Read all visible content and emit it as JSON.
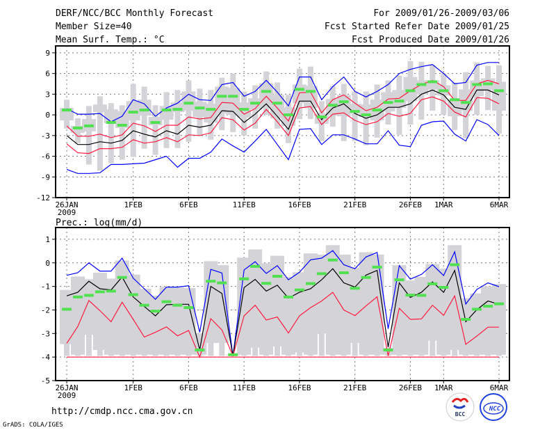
{
  "header": {
    "title": "DERF/NCC/BCC Monthly Forecast",
    "member_size": "Member Size=40",
    "variable": "Mean Surf. Temp.: °C",
    "period": "For 2009/01/26-2009/03/06",
    "started": "Fcst Started Refer Date 2009/01/25",
    "produced": "Fcst Produced Date 2009/01/26"
  },
  "footer": {
    "url": "http://cmdp.ncc.cma.gov.cn",
    "grads": "GrADS: COLA/IGES",
    "logo_bcc": "BCC",
    "logo_ncc": "NCC"
  },
  "colors": {
    "max_min": "#0000ff",
    "percentile": "#ff1a40",
    "mean": "#000000",
    "obs": "#50e050",
    "box": "#d4d4d8"
  },
  "chart_data": [
    {
      "type": "box+line",
      "title": "Mean Surf. Temp.: °C",
      "ylim": [
        -12,
        10
      ],
      "yticks": [
        9,
        6,
        3,
        0,
        -3,
        -6,
        -9,
        -12
      ],
      "xtick_labels": [
        {
          "day": 0,
          "label": "26JAN",
          "sub": "2009"
        },
        {
          "day": 6,
          "label": "1FEB"
        },
        {
          "day": 11,
          "label": "6FEB"
        },
        {
          "day": 16,
          "label": "11FEB"
        },
        {
          "day": 21,
          "label": "16FEB"
        },
        {
          "day": 26,
          "label": "21FEB"
        },
        {
          "day": 31,
          "label": "26FEB"
        },
        {
          "day": 34,
          "label": "1MAR"
        },
        {
          "day": 39,
          "label": "6MAR"
        }
      ],
      "grid": true,
      "box_min": [
        -2.0,
        -4.1,
        -7.2,
        -8.1,
        -7.0,
        -6.5,
        -6.1,
        -4.9,
        -5.8,
        -4.8,
        -4.8,
        -3.9,
        -2.9,
        -3.6,
        -2.2,
        -2.5,
        -3.0,
        -2.0,
        0.0,
        -2.0,
        -4.1,
        -0.6,
        -0.6,
        -3.8,
        -1.7,
        -3.8,
        -3.8,
        -4.4,
        -3.3,
        -1.4,
        -2.9,
        -1.4,
        -0.7,
        0.6,
        0.0,
        -2.2,
        -3.4,
        0.0,
        0.7,
        -2.7
      ],
      "box_max": [
        2.2,
        -0.5,
        1.3,
        2.7,
        1.7,
        1.4,
        4.5,
        4.1,
        1.4,
        3.3,
        3.6,
        5.0,
        3.8,
        3.6,
        5.4,
        6.0,
        3.4,
        4.3,
        6.3,
        4.7,
        2.9,
        6.7,
        7.0,
        2.0,
        4.2,
        4.5,
        3.4,
        3.4,
        4.4,
        5.0,
        5.7,
        7.8,
        7.7,
        7.2,
        6.0,
        4.7,
        6.2,
        7.6,
        7.1,
        7.2
      ],
      "box_q1": [
        -0.8,
        -2.6,
        -2.4,
        0.4,
        -1.2,
        -1.9,
        -0.8,
        -0.1,
        -1.5,
        -0.7,
        0.4,
        0.6,
        -0.3,
        -1.1,
        0.2,
        0.0,
        -0.4,
        0.8,
        1.0,
        -0.5,
        -1.6,
        1.7,
        1.0,
        -1.3,
        0.0,
        -0.2,
        0.2,
        -0.3,
        -0.8,
        0.5,
        1.0,
        2.0,
        3.0,
        3.7,
        2.8,
        -0.2,
        0.6,
        2.7,
        3.6,
        0.6
      ],
      "box_q3": [
        1.0,
        -1.6,
        -0.6,
        1.5,
        0.8,
        0.5,
        2.0,
        2.2,
        -0.3,
        1.3,
        1.8,
        3.4,
        1.9,
        1.6,
        4.1,
        3.9,
        1.8,
        2.4,
        4.6,
        2.9,
        1.1,
        4.4,
        4.2,
        0.2,
        2.3,
        2.9,
        1.6,
        1.5,
        2.2,
        3.3,
        3.6,
        5.5,
        5.0,
        5.0,
        4.3,
        2.2,
        3.7,
        5.0,
        5.3,
        4.8
      ],
      "series": [
        {
          "name": "max",
          "color_key": "max_min",
          "values": [
            0.9,
            0.1,
            0.1,
            0.2,
            -1.0,
            -0.2,
            2.2,
            1.6,
            -0.2,
            1.0,
            1.7,
            3.0,
            2.2,
            2.1,
            4.4,
            4.7,
            2.7,
            3.4,
            5.0,
            3.3,
            1.3,
            5.5,
            5.5,
            2.2,
            4.1,
            5.5,
            3.4,
            2.6,
            3.4,
            4.4,
            6.0,
            6.6,
            7.0,
            7.3,
            6.0,
            4.5,
            4.7,
            7.2,
            7.6,
            7.6
          ]
        },
        {
          "name": "upper",
          "color_key": "percentile",
          "values": [
            -1.6,
            -3.1,
            -3.1,
            -2.8,
            -3.3,
            -2.9,
            -1.2,
            -1.6,
            -2.4,
            -1.5,
            -1.5,
            -0.3,
            -0.6,
            -0.4,
            1.8,
            1.7,
            0.1,
            0.9,
            2.7,
            1.0,
            -0.9,
            3.2,
            3.3,
            0.3,
            2.2,
            2.9,
            1.7,
            0.6,
            1.1,
            2.3,
            2.4,
            3.5,
            4.4,
            5.0,
            4.1,
            2.1,
            2.1,
            4.5,
            5.0,
            4.5
          ]
        },
        {
          "name": "mean",
          "color_key": "mean",
          "values": [
            -3.0,
            -4.3,
            -4.3,
            -3.9,
            -4.1,
            -3.7,
            -2.3,
            -2.8,
            -3.2,
            -2.3,
            -2.8,
            -1.5,
            -1.8,
            -1.5,
            0.6,
            0.5,
            -1.1,
            0.1,
            1.6,
            -0.2,
            -2.1,
            2.0,
            2.0,
            -0.7,
            1.0,
            1.6,
            0.2,
            -0.5,
            0.0,
            1.1,
            1.1,
            1.6,
            3.0,
            3.6,
            2.9,
            1.1,
            0.8,
            3.6,
            3.6,
            2.9
          ]
        },
        {
          "name": "lower",
          "color_key": "percentile",
          "values": [
            -4.2,
            -5.5,
            -5.6,
            -4.9,
            -4.9,
            -4.7,
            -3.6,
            -4.1,
            -3.9,
            -3.3,
            -3.9,
            -2.9,
            -3.0,
            -2.6,
            -0.4,
            -0.7,
            -2.2,
            -1.2,
            0.8,
            -1.0,
            -3.0,
            1.0,
            1.2,
            -1.4,
            0.1,
            0.3,
            -0.8,
            -1.4,
            -1.0,
            0.2,
            -0.2,
            0.2,
            2.2,
            2.6,
            2.0,
            0.4,
            -0.3,
            2.5,
            2.4,
            1.6
          ]
        },
        {
          "name": "min",
          "color_key": "max_min",
          "values": [
            -7.9,
            -8.5,
            -8.5,
            -8.4,
            -7.2,
            -7.2,
            -7.1,
            -7.0,
            -6.5,
            -6.0,
            -7.6,
            -6.3,
            -6.3,
            -5.4,
            -3.5,
            -4.5,
            -5.4,
            -3.8,
            -2.1,
            -4.3,
            -6.5,
            -2.1,
            -2.0,
            -4.3,
            -2.9,
            -2.9,
            -3.5,
            -4.2,
            -4.2,
            -2.3,
            -4.4,
            -4.6,
            -1.5,
            -1.0,
            -0.9,
            -2.8,
            -3.8,
            -0.7,
            -1.4,
            -3.0
          ]
        }
      ],
      "observed": [
        0.7,
        -1.9,
        -1.6,
        null,
        -1.1,
        -1.5,
        0.4,
        0.7,
        -1.1,
        0.7,
        0.8,
        1.7,
        1.0,
        0.8,
        2.7,
        2.7,
        0.8,
        1.7,
        3.4,
        1.7,
        0.0,
        3.7,
        3.4,
        -0.3,
        1.4,
        1.9,
        0.5,
        0.0,
        0.7,
        1.8,
        2.0,
        3.5,
        4.4,
        4.8,
        3.5,
        2.2,
        1.8,
        4.4,
        4.5,
        3.5
      ]
    },
    {
      "type": "box+line",
      "title": "Prec.: log(mm/d)",
      "ylim": [
        -5,
        1.5
      ],
      "yticks": [
        1,
        0,
        -1,
        -2,
        -3,
        -4,
        -5
      ],
      "xtick_labels": [
        {
          "day": 0,
          "label": "26JAN",
          "sub": "2009"
        },
        {
          "day": 6,
          "label": "1FEB"
        },
        {
          "day": 11,
          "label": "6FEB"
        },
        {
          "day": 16,
          "label": "11FEB"
        },
        {
          "day": 21,
          "label": "16FEB"
        },
        {
          "day": 26,
          "label": "21FEB"
        },
        {
          "day": 31,
          "label": "26FEB"
        },
        {
          "day": 34,
          "label": "1MAR"
        },
        {
          "day": 39,
          "label": "6MAR"
        }
      ],
      "grid": true,
      "box_min": [
        -3.95,
        -3.95,
        -3.95,
        -3.95,
        -3.95,
        -3.95,
        -3.95,
        -3.95,
        -3.95,
        -3.95,
        -3.95,
        -3.95,
        -3.95,
        -3.95,
        -3.95,
        -3.95,
        -3.95,
        -3.95,
        -3.95,
        -3.95,
        -3.95,
        -3.95,
        -3.95,
        -3.95,
        -3.95,
        -3.95,
        -3.95,
        -3.95,
        -3.95,
        -3.95,
        -3.95,
        -3.95,
        -3.95,
        -3.95,
        -3.95,
        -3.95,
        -3.95,
        -3.95,
        -3.95,
        -3.95
      ],
      "box_max": [
        -1.15,
        -0.58,
        -0.7,
        -0.42,
        -0.67,
        0.1,
        -0.5,
        -1.1,
        -1.4,
        -1.02,
        -1.05,
        -1.07,
        -3.0,
        0.07,
        -0.1,
        -3.9,
        0.22,
        0.57,
        -0.02,
        0.3,
        -0.6,
        -0.4,
        0.4,
        0.35,
        0.75,
        0.35,
        -0.2,
        0.45,
        0.35,
        -3.6,
        -0.1,
        -0.75,
        -0.6,
        -0.05,
        -0.25,
        0.75,
        -1.5,
        -1.3,
        -1.0,
        -0.9
      ],
      "box_q1": [
        -3.45,
        -3.9,
        -3.05,
        -3.7,
        -3.9,
        -3.9,
        -3.9,
        -3.9,
        -3.9,
        -3.9,
        -3.9,
        -3.9,
        -3.9,
        -3.4,
        -3.4,
        -3.9,
        -3.9,
        -3.6,
        -3.9,
        -3.55,
        -3.9,
        -3.8,
        -3.9,
        -3.0,
        -3.9,
        -3.9,
        -3.4,
        -3.9,
        -3.9,
        -3.9,
        -3.9,
        -3.9,
        -3.9,
        -3.3,
        -3.9,
        -3.7,
        -3.9,
        -3.9,
        -3.9,
        -3.9
      ],
      "box_q3": [
        -1.15,
        -0.58,
        -0.7,
        -0.42,
        -0.67,
        0.1,
        -0.5,
        -1.1,
        -1.4,
        -1.02,
        -1.05,
        -1.07,
        -3.0,
        0.07,
        -0.1,
        -3.9,
        0.22,
        0.57,
        -0.02,
        0.3,
        -0.6,
        -0.4,
        0.4,
        0.35,
        0.75,
        0.35,
        -0.2,
        0.45,
        0.35,
        -3.6,
        -0.1,
        -0.75,
        -0.6,
        -0.05,
        -0.25,
        0.75,
        -1.5,
        -1.3,
        -1.0,
        -0.9
      ],
      "series": [
        {
          "name": "max",
          "color_key": "max_min",
          "values": [
            -0.53,
            -0.42,
            0.0,
            -0.35,
            -0.35,
            0.2,
            -0.65,
            -1.1,
            -1.55,
            -1.03,
            -1.03,
            -0.97,
            -2.95,
            -0.28,
            -0.43,
            -3.95,
            -0.3,
            0.05,
            -0.45,
            -0.12,
            -0.72,
            -0.4,
            0.13,
            0.2,
            0.52,
            -0.08,
            -0.25,
            0.25,
            0.44,
            -2.8,
            -0.12,
            -0.69,
            -0.49,
            -0.08,
            -0.54,
            0.47,
            -1.75,
            -1.13,
            -0.85,
            -1.01
          ]
        },
        {
          "name": "mean",
          "color_key": "mean",
          "values": [
            -1.4,
            -1.25,
            -0.78,
            -1.1,
            -1.15,
            -0.6,
            -1.45,
            -1.85,
            -2.25,
            -1.78,
            -1.76,
            -1.76,
            -3.7,
            -1.0,
            -1.3,
            -3.95,
            -1.05,
            -0.7,
            -1.2,
            -0.95,
            -1.5,
            -1.25,
            -1.1,
            -0.72,
            -0.25,
            -0.85,
            -1.03,
            -0.52,
            -0.32,
            -3.58,
            -0.85,
            -1.47,
            -1.25,
            -0.81,
            -1.25,
            -0.32,
            -2.5,
            -1.99,
            -1.62,
            -1.76
          ]
        },
        {
          "name": "lower",
          "color_key": "percentile",
          "values": [
            -3.42,
            -2.7,
            -1.6,
            -2.03,
            -2.5,
            -1.67,
            -2.4,
            -3.15,
            -2.95,
            -2.72,
            -3.1,
            -2.87,
            -4.0,
            -2.37,
            -2.85,
            -3.95,
            -2.25,
            -1.8,
            -2.43,
            -2.3,
            -2.98,
            -2.25,
            -1.9,
            -1.62,
            -1.25,
            -2.0,
            -2.24,
            -1.83,
            -1.44,
            -3.95,
            -1.93,
            -2.4,
            -2.38,
            -1.8,
            -2.23,
            -1.4,
            -3.46,
            -3.11,
            -2.73,
            -2.73
          ]
        },
        {
          "name": "min",
          "color_key": "percentile",
          "values": [
            -4,
            -4,
            -4,
            -4,
            -4,
            -4,
            -4,
            -4,
            -4,
            -4,
            -4,
            -4,
            -4,
            -4,
            -4,
            -4,
            -4,
            -4,
            -4,
            -4,
            -4,
            -4,
            -4,
            -4,
            -4,
            -4,
            -4,
            -4,
            -4,
            -4,
            -4,
            -4,
            -4,
            -4,
            -4,
            -4,
            -4,
            -4,
            -4,
            -4
          ]
        }
      ],
      "observed": [
        -1.97,
        -1.45,
        -1.38,
        -1.23,
        -1.2,
        -0.62,
        -1.35,
        -1.8,
        -2.05,
        -1.65,
        -1.8,
        -1.9,
        -3.7,
        -0.78,
        -0.85,
        -3.9,
        -0.68,
        -0.15,
        -0.87,
        -0.57,
        -1.45,
        -1.15,
        -0.88,
        -0.46,
        0.12,
        -0.42,
        -1.08,
        -0.62,
        -0.18,
        -3.7,
        -0.72,
        -1.37,
        -1.38,
        -0.89,
        -1.04,
        -0.08,
        -2.4,
        -1.97,
        -1.84,
        -1.74
      ]
    }
  ]
}
